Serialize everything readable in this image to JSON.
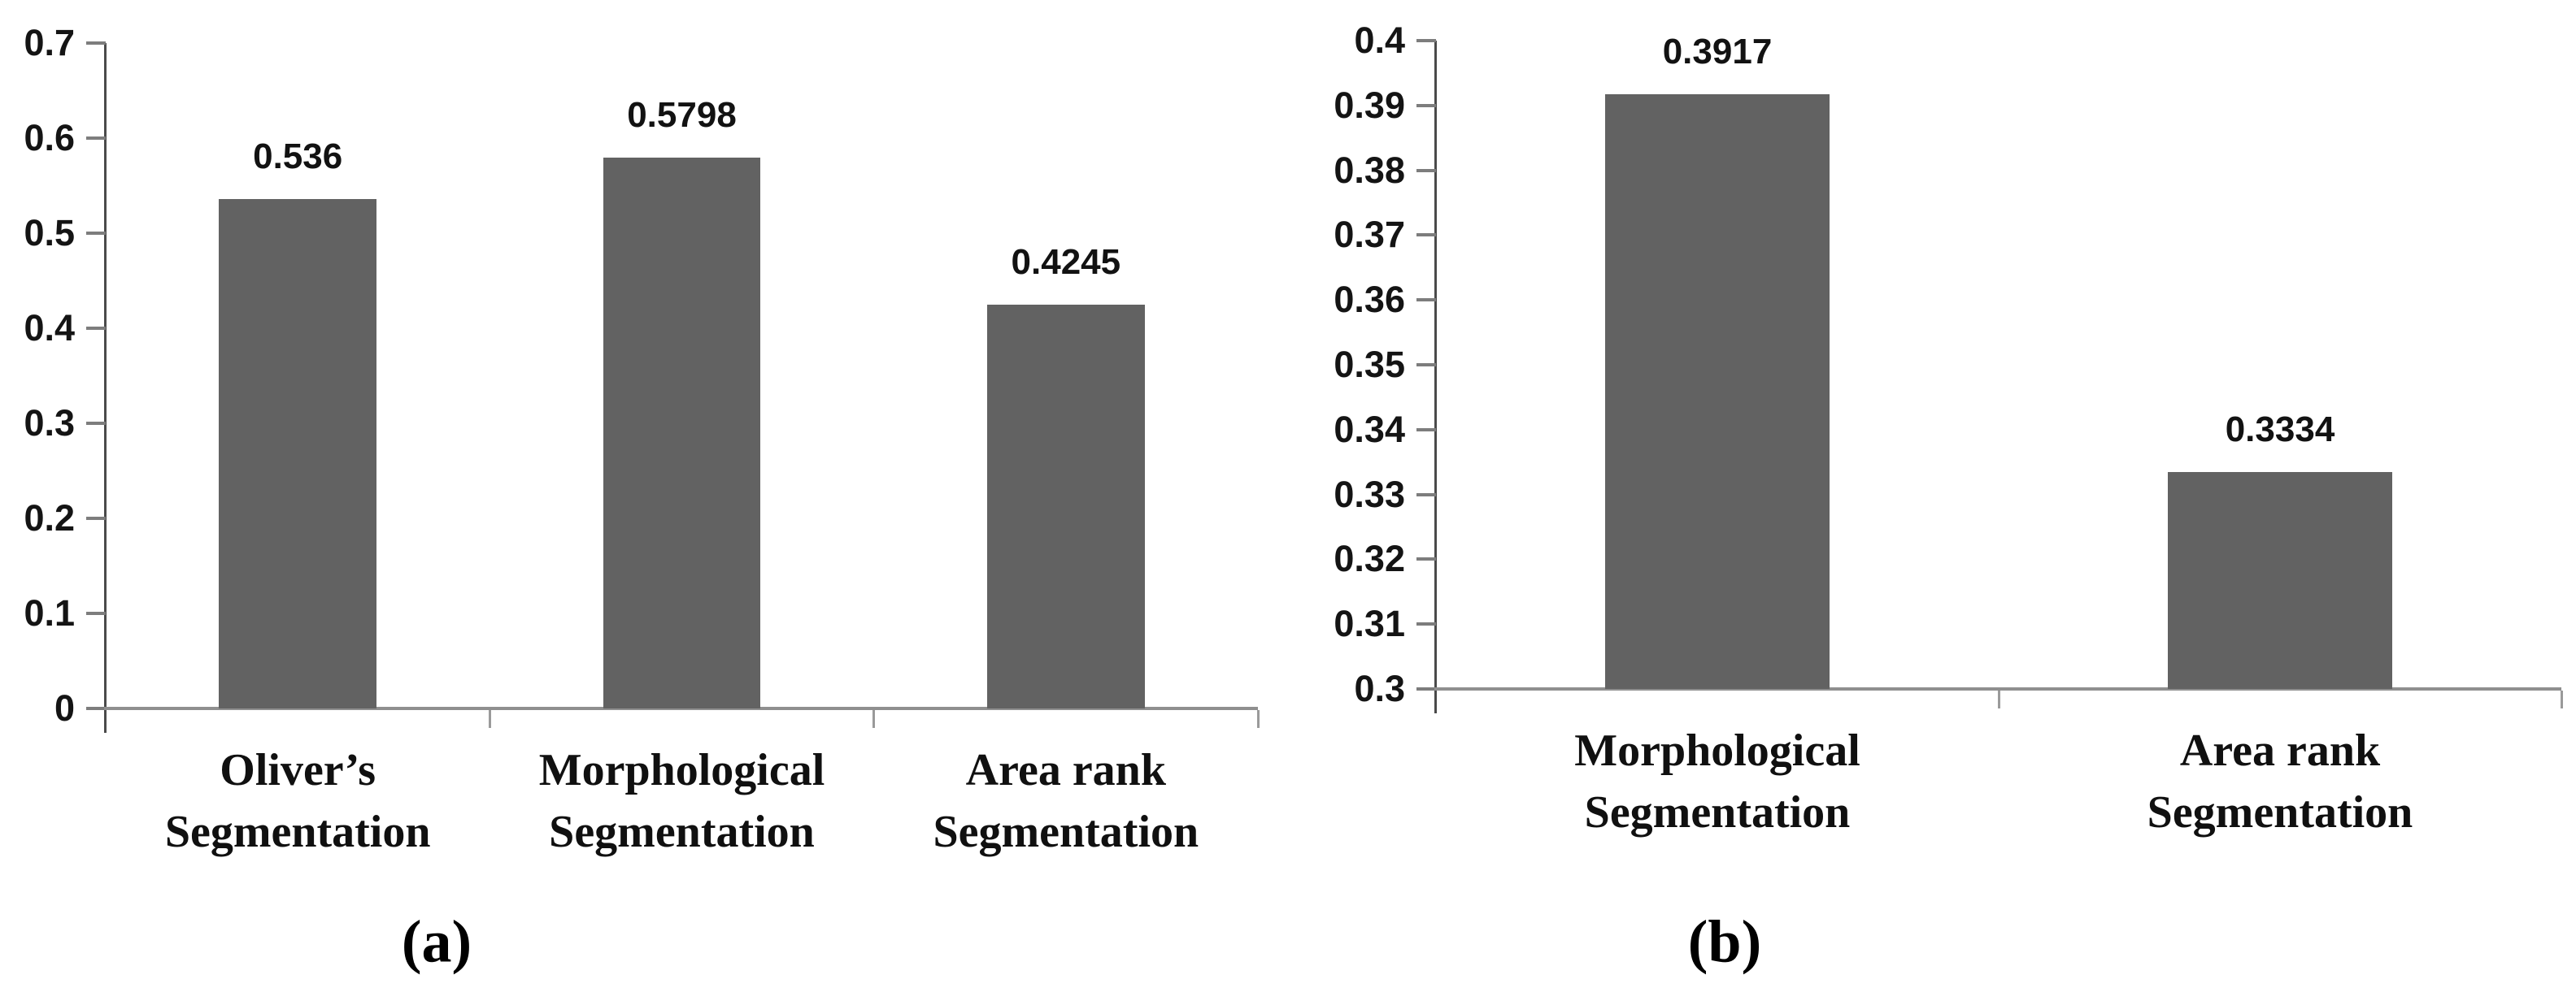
{
  "figure": {
    "background_color": "#ffffff",
    "bar_color": "#626262",
    "baseline_color": "#8f8f8f",
    "yaxis_color": "#4a4a4a",
    "tick_color": "#7d7d7d",
    "text_color": "#141414"
  },
  "chart_data": [
    {
      "type": "bar",
      "panel": "a",
      "caption": "(a)",
      "title": "",
      "xlabel": "",
      "ylabel": "",
      "ylim": [
        0,
        0.7
      ],
      "grid": false,
      "legend": "none",
      "yticks": [
        {
          "value": 0.7,
          "label": "0.7"
        },
        {
          "value": 0.6,
          "label": "0.6"
        },
        {
          "value": 0.5,
          "label": "0.5"
        },
        {
          "value": 0.4,
          "label": "0.4"
        },
        {
          "value": 0.3,
          "label": "0.3"
        },
        {
          "value": 0.2,
          "label": "0.2"
        },
        {
          "value": 0.1,
          "label": "0.1"
        },
        {
          "value": 0.0,
          "label": "0"
        }
      ],
      "categories": [
        "Oliver’s Segmentation",
        "Morphological Segmentation",
        "Area rank Segmentation"
      ],
      "bars": [
        {
          "category_lines": [
            "Oliver’s",
            "Segmentation"
          ],
          "value": 0.536,
          "value_label": "0.536"
        },
        {
          "category_lines": [
            "Morphological",
            "Segmentation"
          ],
          "value": 0.5798,
          "value_label": "0.5798"
        },
        {
          "category_lines": [
            "Area rank",
            "Segmentation"
          ],
          "value": 0.4245,
          "value_label": "0.4245"
        }
      ]
    },
    {
      "type": "bar",
      "panel": "b",
      "caption": "(b)",
      "title": "",
      "xlabel": "",
      "ylabel": "",
      "ylim": [
        0.3,
        0.4
      ],
      "grid": false,
      "legend": "none",
      "yticks": [
        {
          "value": 0.4,
          "label": "0.4"
        },
        {
          "value": 0.39,
          "label": "0.39"
        },
        {
          "value": 0.38,
          "label": "0.38"
        },
        {
          "value": 0.37,
          "label": "0.37"
        },
        {
          "value": 0.36,
          "label": "0.36"
        },
        {
          "value": 0.35,
          "label": "0.35"
        },
        {
          "value": 0.34,
          "label": "0.34"
        },
        {
          "value": 0.33,
          "label": "0.33"
        },
        {
          "value": 0.32,
          "label": "0.32"
        },
        {
          "value": 0.31,
          "label": "0.31"
        },
        {
          "value": 0.3,
          "label": "0.3"
        }
      ],
      "categories": [
        "Morphological Segmentation",
        "Area rank Segmentation"
      ],
      "bars": [
        {
          "category_lines": [
            "Morphological",
            "Segmentation"
          ],
          "value": 0.3917,
          "value_label": "0.3917"
        },
        {
          "category_lines": [
            "Area rank",
            "Segmentation"
          ],
          "value": 0.3334,
          "value_label": "0.3334"
        }
      ]
    }
  ]
}
